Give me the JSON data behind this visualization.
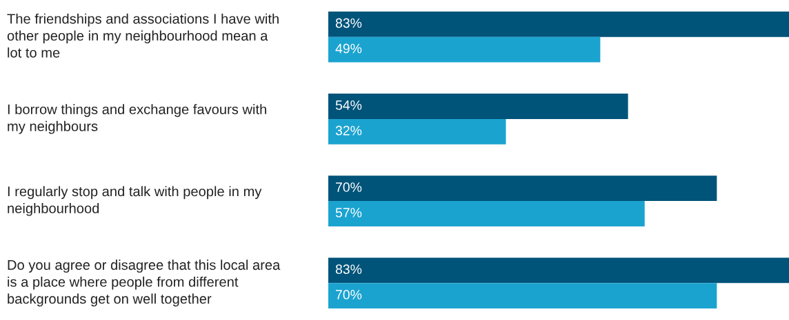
{
  "chart_data": {
    "type": "bar",
    "orientation": "horizontal",
    "categories": [
      "The friendships and associations I have with\nother people in my neighbourhood mean a\nlot to me",
      "I borrow things and exchange favours with\nmy neighbours",
      "I regularly stop and talk with people in my\nneighbourhood",
      "Do you agree or disagree that this local area\nis a place where people from different\nbackgrounds get on well together"
    ],
    "series": [
      {
        "color": "#005379",
        "values": [
          83,
          54,
          70,
          83
        ],
        "value_labels": [
          "83%",
          "54%",
          "70%",
          "83%"
        ]
      },
      {
        "color": "#1ba3d0",
        "values": [
          49,
          32,
          57,
          70
        ],
        "value_labels": [
          "49%",
          "32%",
          "57%",
          "70%"
        ]
      }
    ]
  }
}
